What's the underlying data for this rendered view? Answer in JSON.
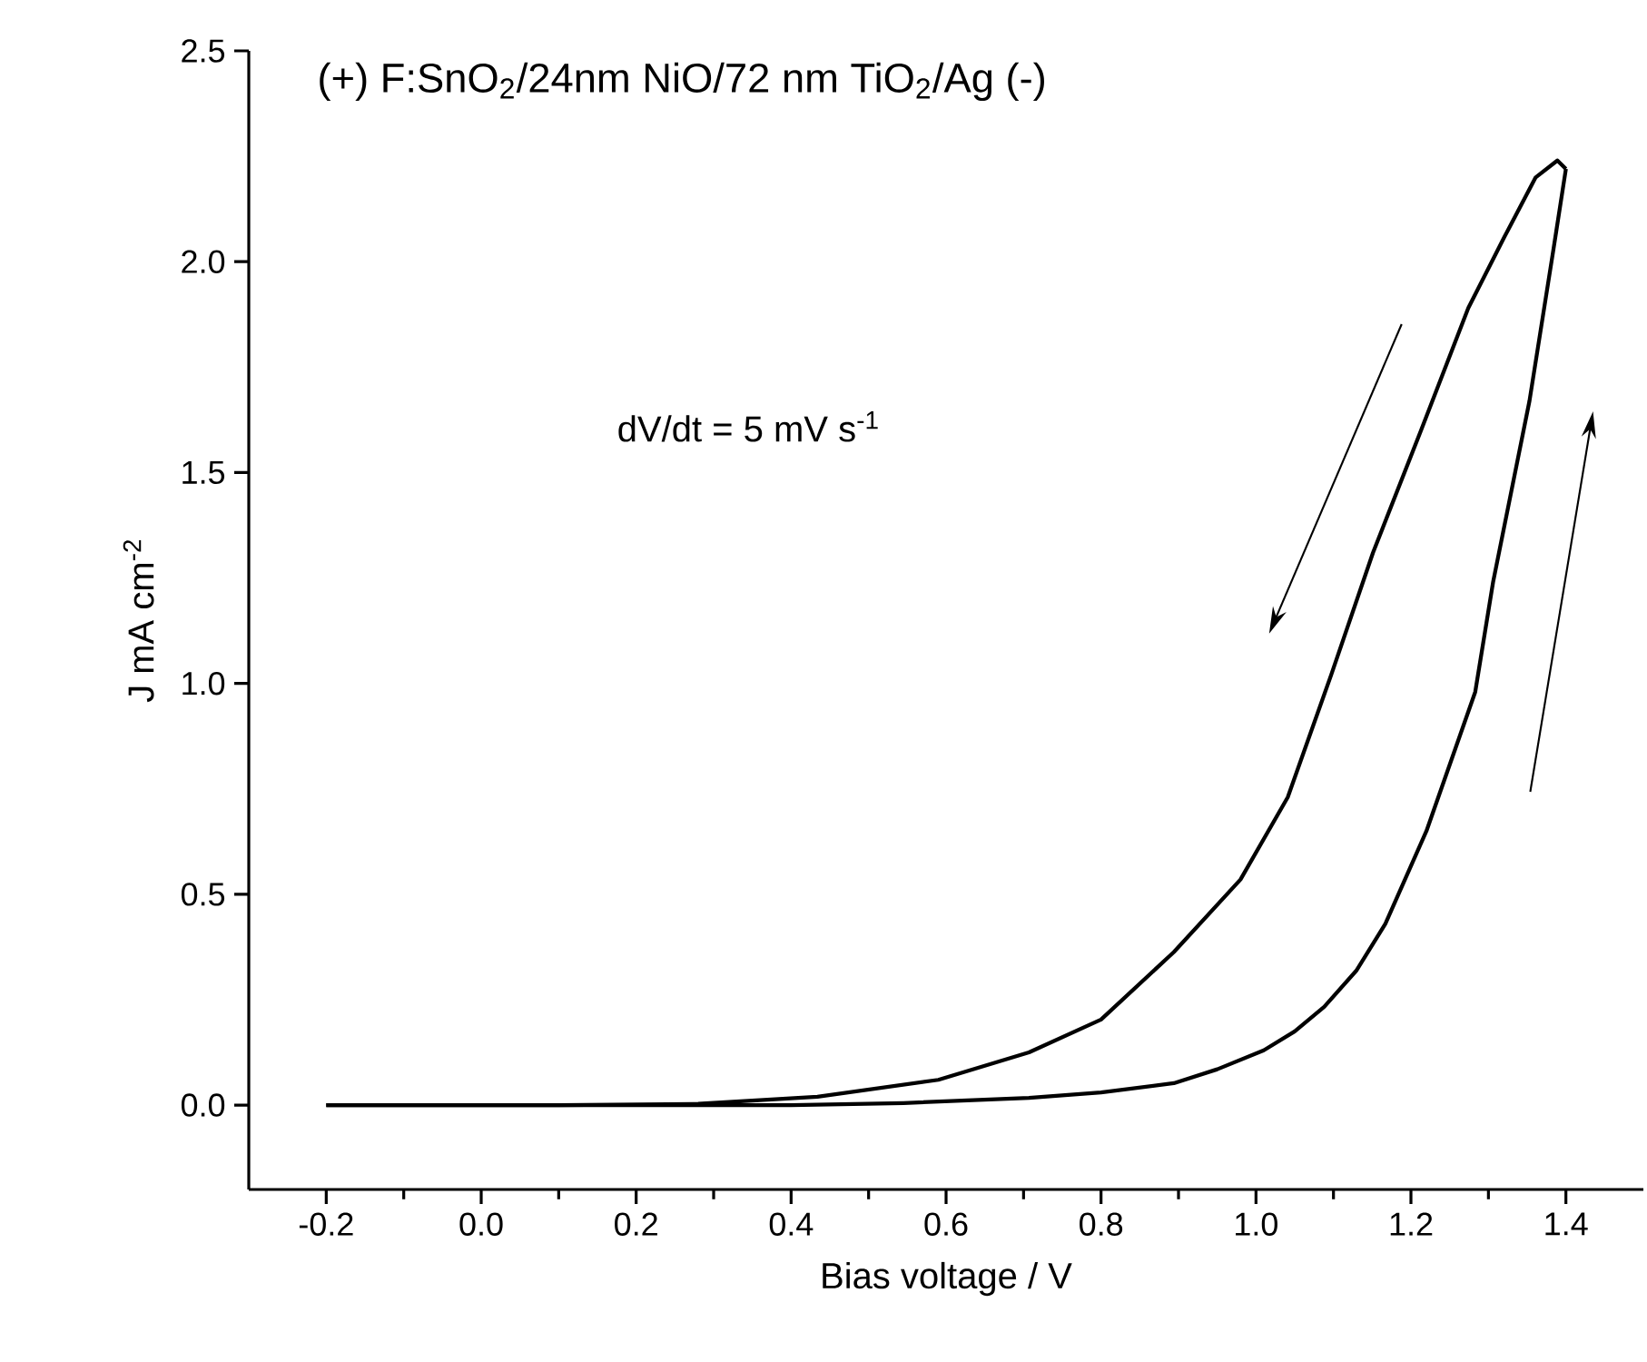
{
  "chart_data": {
    "type": "line",
    "xlabel": "Bias voltage / V",
    "ylabel": "J mA cm$^{-2}$",
    "annotations": [
      "(+) F:SnO$_{2}$/24nm NiO/72 nm TiO$_{2}$/Ag (-)",
      "dV/dt = 5 mV s$^{-1}$"
    ],
    "series": [
      {
        "color": "#000000",
        "x": [
          -0.2,
          0.0,
          0.2,
          0.4,
          0.545,
          0.707,
          0.8,
          0.894,
          0.95,
          1.01,
          1.05,
          1.088,
          1.13,
          1.167,
          1.22,
          1.283,
          1.306,
          1.353,
          1.384,
          1.4
        ],
        "values": [
          0.0,
          0.0,
          0.0,
          0.0,
          0.005,
          0.017,
          0.03,
          0.052,
          0.085,
          0.13,
          0.175,
          0.233,
          0.32,
          0.43,
          0.65,
          0.98,
          1.24,
          1.67,
          2.03,
          2.22
        ]
      },
      {
        "color": "#000000",
        "x": [
          1.4,
          1.389,
          1.361,
          1.321,
          1.274,
          1.213,
          1.151,
          1.097,
          1.041,
          0.98,
          0.894,
          0.8,
          0.707,
          0.59,
          0.434,
          0.28,
          0.1,
          -0.2
        ],
        "values": [
          2.22,
          2.24,
          2.2,
          2.06,
          1.89,
          1.6,
          1.31,
          1.02,
          0.73,
          0.535,
          0.363,
          0.203,
          0.125,
          0.06,
          0.02,
          0.003,
          0.0,
          0.0
        ]
      }
    ],
    "xlim": [
      -0.3,
      1.5
    ],
    "ylim": [
      -0.2,
      2.5
    ],
    "xticks": [
      -0.2,
      {
        "value": 0,
        "label": "0.0"
      },
      0.2,
      0.4,
      0.6,
      0.8,
      {
        "value": 1,
        "label": "1.0"
      },
      1.2,
      1.4
    ],
    "yticks": [
      {
        "value": 0,
        "label": "0.0"
      },
      0.5,
      {
        "value": 1,
        "label": "1.0"
      },
      1.5,
      {
        "value": 2,
        "label": "2.0"
      },
      2.5
    ],
    "grid": false,
    "marker": "none",
    "line_style": "solid"
  }
}
